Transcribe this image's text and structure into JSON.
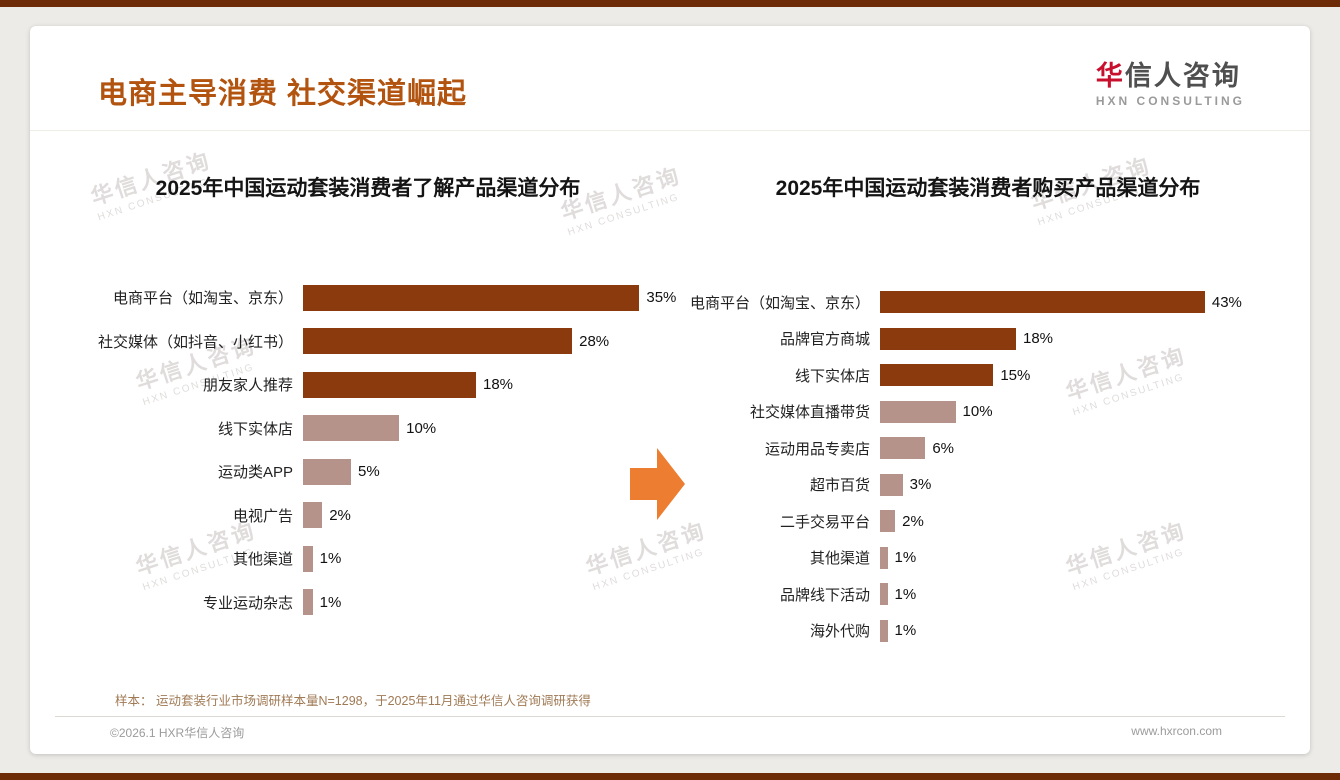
{
  "page": {
    "title": "电商主导消费 社交渠道崛起",
    "footnote": "样本： 运动套装行业市场调研样本量N=1298，于2025年11月通过华信人咨询调研获得",
    "footer_left": "©2026.1 HXR华信人咨询",
    "footer_right": "www.hxrcon.com"
  },
  "logo": {
    "cn_first": "华",
    "cn_rest": "信人咨询",
    "en": "HXN CONSULTING"
  },
  "watermark": {
    "line1": "华信人咨询",
    "line2": "HXN CONSULTING"
  },
  "colors": {
    "accent": "#B2530F",
    "bar_dark": "#8B3A0E",
    "bar_light": "#B5938A",
    "arrow": "#ED7D31",
    "border": "#6E2B07"
  },
  "chart_data": [
    {
      "type": "bar",
      "orientation": "horizontal",
      "title": "2025年中国运动套装消费者了解产品渠道分布",
      "categories": [
        "电商平台（如淘宝、京东）",
        "社交媒体（如抖音、小红书）",
        "朋友家人推荐",
        "线下实体店",
        "运动类APP",
        "电视广告",
        "其他渠道",
        "专业运动杂志"
      ],
      "values": [
        35,
        28,
        18,
        10,
        5,
        2,
        1,
        1
      ],
      "unit": "%",
      "xlim": [
        0,
        36
      ],
      "emphasis_count": 3,
      "grid": false,
      "legend": false
    },
    {
      "type": "bar",
      "orientation": "horizontal",
      "title": "2025年中国运动套装消费者购买产品渠道分布",
      "categories": [
        "电商平台（如淘宝、京东）",
        "品牌官方商城",
        "线下实体店",
        "社交媒体直播带货",
        "运动用品专卖店",
        "超市百货",
        "二手交易平台",
        "其他渠道",
        "品牌线下活动",
        "海外代购"
      ],
      "values": [
        43,
        18,
        15,
        10,
        6,
        3,
        2,
        1,
        1,
        1
      ],
      "unit": "%",
      "xlim": [
        0,
        45
      ],
      "emphasis_count": 3,
      "grid": false,
      "legend": false
    }
  ]
}
